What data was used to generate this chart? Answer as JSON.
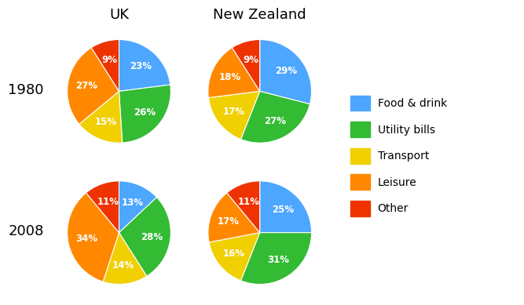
{
  "title_uk": "UK",
  "title_nz": "New Zealand",
  "row_labels": [
    "1980",
    "2008"
  ],
  "categories": [
    "Food & drink",
    "Utility bills",
    "Transport",
    "Leisure",
    "Other"
  ],
  "colors": [
    "#4da6ff",
    "#33bb33",
    "#f0d000",
    "#ff8800",
    "#ee3300"
  ],
  "uk_1980": [
    23,
    26,
    15,
    27,
    9
  ],
  "nz_1980": [
    29,
    27,
    17,
    18,
    9
  ],
  "uk_2008": [
    13,
    28,
    14,
    34,
    11
  ],
  "nz_2008": [
    25,
    31,
    16,
    17,
    11
  ],
  "bg_color": "#ffffff",
  "label_fontsize": 8.5,
  "title_fontsize": 13,
  "row_label_fontsize": 13,
  "legend_fontsize": 10
}
